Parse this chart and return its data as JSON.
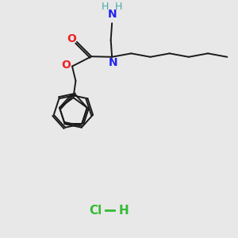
{
  "background_color": "#e8e8e8",
  "bond_color": "#1a1a1a",
  "bond_width": 1.4,
  "N_color": "#2222ee",
  "O_color": "#ee2222",
  "Cl_color": "#33bb33",
  "NH_H_color": "#44aaaa",
  "figsize": [
    3.0,
    3.0
  ],
  "dpi": 100,
  "xlim": [
    0,
    10
  ],
  "ylim": [
    0,
    10
  ]
}
